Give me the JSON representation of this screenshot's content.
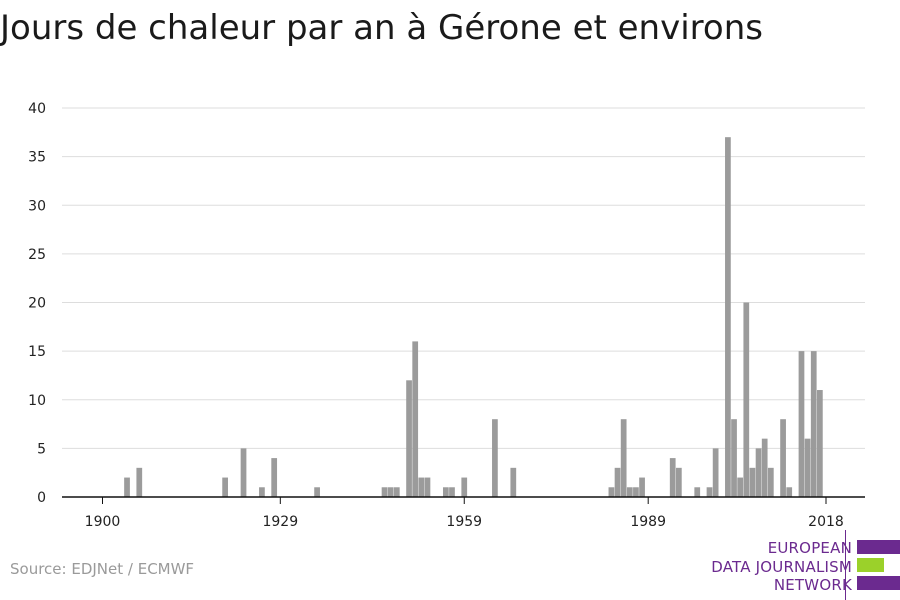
{
  "title": "Jours de chaleur par an à Gérone et environs",
  "source": "Source: EDJNet / ECMWF",
  "logo": {
    "line1": "EUROPEAN",
    "line2": "DATA JOURNALISM",
    "line3": "NETWORK",
    "purple": "#6b2a8f",
    "green": "#9bd12a"
  },
  "colors": {
    "bar": "#9b9b9b",
    "grid": "#dddddd",
    "axis": "#111111"
  },
  "chart_data": {
    "type": "bar",
    "title": "Jours de chaleur par an à Gérone et environs",
    "xlabel": "",
    "ylabel": "",
    "ylim": [
      0,
      40
    ],
    "yticks": [
      0,
      5,
      10,
      15,
      20,
      25,
      30,
      35,
      40
    ],
    "xticks": [
      1900,
      1929,
      1959,
      1989,
      2018
    ],
    "xlim": [
      1897,
      2024
    ],
    "grid": true,
    "years": [
      1904,
      1906,
      1920,
      1923,
      1926,
      1928,
      1935,
      1946,
      1947,
      1948,
      1950,
      1951,
      1952,
      1953,
      1956,
      1957,
      1959,
      1964,
      1967,
      1983,
      1984,
      1985,
      1986,
      1987,
      1988,
      1993,
      1994,
      1997,
      1999,
      2000,
      2002,
      2003,
      2004,
      2005,
      2006,
      2007,
      2008,
      2009,
      2011,
      2012,
      2014,
      2015,
      2016,
      2017
    ],
    "values": [
      2,
      3,
      2,
      5,
      1,
      4,
      1,
      1,
      1,
      1,
      12,
      16,
      2,
      2,
      1,
      1,
      2,
      8,
      3,
      1,
      3,
      8,
      1,
      1,
      2,
      4,
      3,
      1,
      1,
      5,
      37,
      8,
      2,
      20,
      3,
      5,
      6,
      3,
      8,
      1,
      15,
      6,
      15,
      11
    ]
  }
}
